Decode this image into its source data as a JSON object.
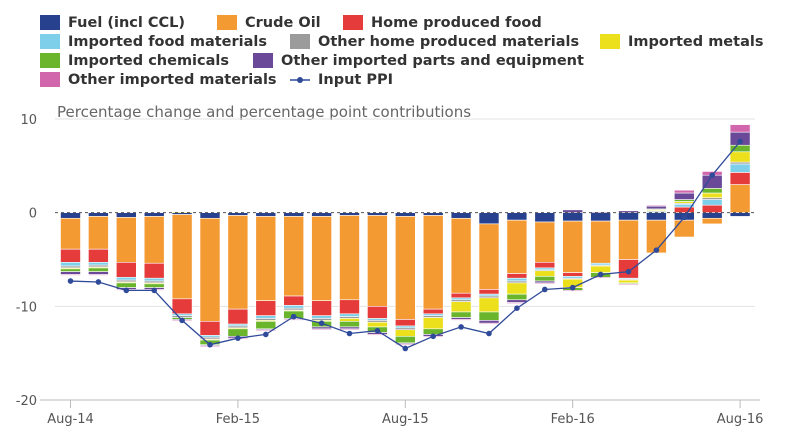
{
  "chart_data": {
    "type": "bar",
    "stacked": true,
    "subtitle": "Percentage change and percentage point contributions",
    "ylim": [
      -20,
      10
    ],
    "y_ticks": [
      "10",
      "0",
      "-10",
      "-20"
    ],
    "x_tick_labels": [
      "Aug-14",
      "Feb-15",
      "Aug-15",
      "Feb-16",
      "Aug-16"
    ],
    "legend_position": "top",
    "categories": [
      "Aug-14",
      "Sep-14",
      "Oct-14",
      "Nov-14",
      "Dec-14",
      "Jan-15",
      "Feb-15",
      "Mar-15",
      "Apr-15",
      "May-15",
      "Jun-15",
      "Jul-15",
      "Aug-15",
      "Sep-15",
      "Oct-15",
      "Nov-15",
      "Dec-15",
      "Jan-16",
      "Feb-16",
      "Mar-16",
      "Apr-16",
      "May-16",
      "Jun-16",
      "Jul-16",
      "Aug-16"
    ],
    "series": [
      {
        "name": "Fuel (incl CCL)",
        "color": "#27418f",
        "values": [
          -0.6,
          -0.4,
          -0.5,
          -0.4,
          -0.2,
          -0.6,
          -0.3,
          -0.4,
          -0.4,
          -0.4,
          -0.3,
          -0.3,
          -0.4,
          -0.3,
          -0.6,
          -1.2,
          -0.8,
          -1.0,
          -0.9,
          -0.9,
          -0.8,
          -0.8,
          -0.8,
          -0.6,
          -0.4
        ]
      },
      {
        "name": "Crude Oil",
        "color": "#f49a33",
        "values": [
          -3.3,
          -3.5,
          -4.8,
          -5.0,
          -9.0,
          -11.0,
          -10.0,
          -9.0,
          -8.5,
          -9.0,
          -9.0,
          -9.7,
          -11.0,
          -10.0,
          -8.0,
          -7.0,
          -5.7,
          -4.3,
          -5.5,
          -4.5,
          -4.2,
          -3.5,
          -1.8,
          -0.6,
          3.0
        ]
      },
      {
        "name": "Home produced food",
        "color": "#e63b3b",
        "values": [
          -1.4,
          -1.4,
          -1.6,
          -1.6,
          -1.6,
          -1.5,
          -1.6,
          -1.6,
          -1.0,
          -1.6,
          -1.5,
          -1.3,
          -0.7,
          -0.5,
          -0.5,
          -0.5,
          -0.5,
          -0.6,
          -0.4,
          0.0,
          -2.0,
          0.0,
          0.6,
          0.8,
          1.3
        ]
      },
      {
        "name": "Imported food materials",
        "color": "#7ecfea",
        "values": [
          -0.4,
          -0.3,
          -0.3,
          -0.3,
          -0.2,
          -0.2,
          -0.2,
          -0.3,
          -0.3,
          -0.3,
          -0.3,
          -0.2,
          -0.2,
          -0.2,
          -0.2,
          -0.2,
          -0.3,
          -0.2,
          -0.2,
          -0.2,
          -0.1,
          0.1,
          0.3,
          0.6,
          0.9
        ]
      },
      {
        "name": "Other home produced materials",
        "color": "#9b9b9b",
        "values": [
          -0.2,
          -0.2,
          -0.2,
          -0.2,
          -0.2,
          -0.2,
          -0.2,
          -0.2,
          -0.2,
          -0.2,
          -0.2,
          -0.2,
          -0.2,
          -0.2,
          -0.2,
          -0.2,
          -0.2,
          -0.1,
          -0.1,
          -0.1,
          -0.1,
          0.1,
          0.1,
          0.2,
          0.2
        ]
      },
      {
        "name": "Imported metals",
        "color": "#ece01d",
        "values": [
          -0.1,
          -0.1,
          -0.1,
          -0.1,
          0.1,
          -0.1,
          -0.1,
          -0.1,
          -0.1,
          -0.1,
          -0.3,
          -0.5,
          -0.7,
          -1.2,
          -1.1,
          -1.5,
          -1.2,
          -0.6,
          -0.9,
          -0.7,
          -0.3,
          0.1,
          0.2,
          0.5,
          1.1
        ]
      },
      {
        "name": "Imported chemicals",
        "color": "#6bb52c",
        "values": [
          -0.3,
          -0.4,
          -0.5,
          -0.4,
          -0.2,
          -0.5,
          -0.8,
          -0.8,
          -0.8,
          -0.6,
          -0.6,
          -0.6,
          -0.7,
          -0.6,
          -0.6,
          -0.9,
          -0.6,
          -0.5,
          -0.3,
          -0.5,
          -0.1,
          0.1,
          0.2,
          0.5,
          0.7
        ]
      },
      {
        "name": "Other imported parts and equipment",
        "color": "#6a4a98",
        "values": [
          -0.3,
          -0.3,
          -0.2,
          -0.2,
          -0.1,
          -0.1,
          -0.2,
          -0.1,
          -0.1,
          -0.2,
          -0.2,
          -0.2,
          -0.1,
          -0.2,
          -0.2,
          -0.3,
          -0.3,
          -0.2,
          0.3,
          0.1,
          0.2,
          0.3,
          0.7,
          1.4,
          1.4
        ]
      },
      {
        "name": "Other imported materials",
        "color": "#d266ad",
        "values": [
          -0.1,
          -0.1,
          -0.1,
          -0.1,
          -0.1,
          -0.1,
          -0.1,
          -0.1,
          -0.1,
          -0.1,
          -0.1,
          -0.1,
          -0.1,
          -0.1,
          -0.1,
          -0.1,
          -0.1,
          -0.1,
          -0.1,
          -0.1,
          -0.1,
          0.1,
          0.3,
          0.4,
          0.8
        ]
      }
    ],
    "line": {
      "name": "Input PPI",
      "color": "#2f4a99",
      "values": [
        -7.3,
        -7.4,
        -8.3,
        -8.3,
        -11.5,
        -14.1,
        -13.4,
        -13.0,
        -11.1,
        -11.8,
        -12.9,
        -12.6,
        -14.5,
        -13.2,
        -12.2,
        -12.9,
        -10.2,
        -8.2,
        -8.0,
        -6.6,
        -6.3,
        -4.0,
        -0.5,
        4.0,
        7.6
      ]
    }
  }
}
